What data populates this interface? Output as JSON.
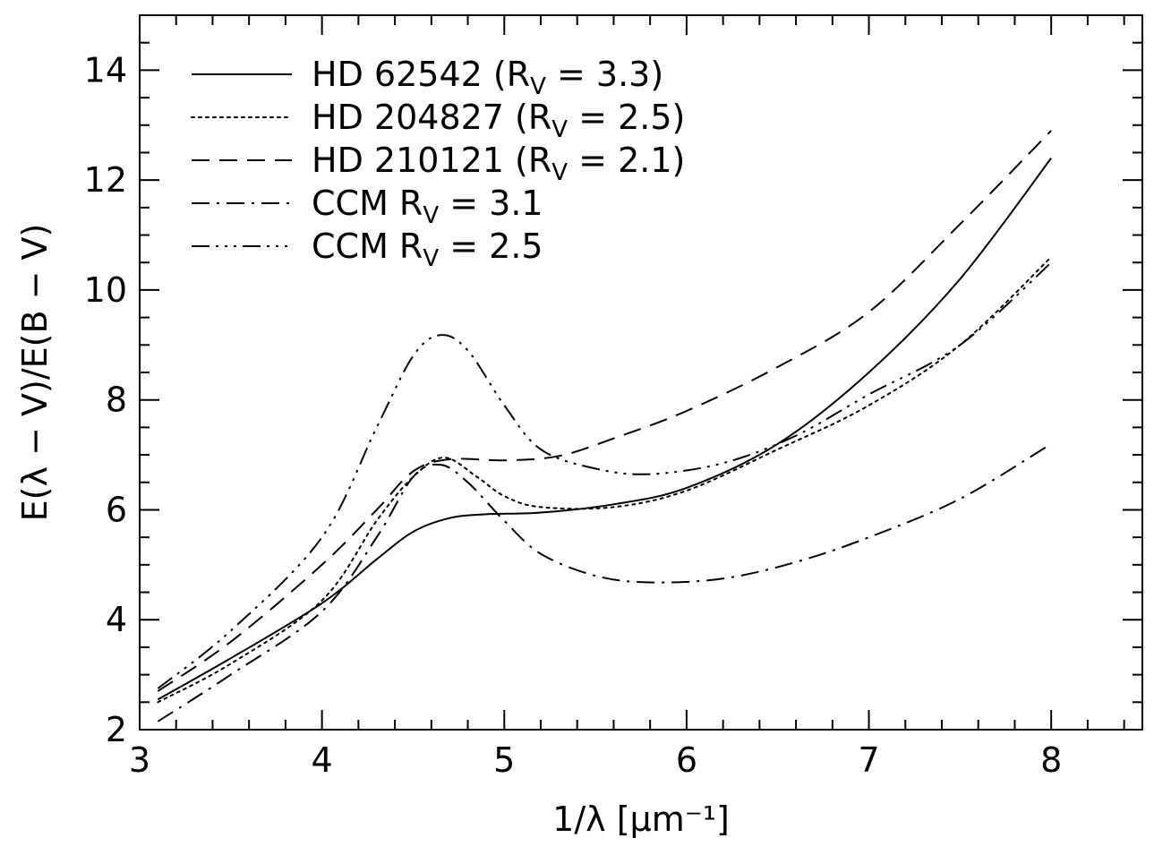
{
  "chart_data": {
    "type": "line",
    "xlabel": "1/λ [μm⁻¹]",
    "ylabel": "E(λ − V)/E(B − V)",
    "xlim": [
      3,
      8.5
    ],
    "ylim": [
      2,
      15
    ],
    "xticks": [
      3,
      4,
      5,
      6,
      7,
      8
    ],
    "yticks": [
      2,
      4,
      6,
      8,
      10,
      12,
      14
    ],
    "xtick_labels": [
      "3",
      "4",
      "5",
      "6",
      "7",
      "8"
    ],
    "ytick_labels": [
      "2",
      "4",
      "6",
      "8",
      "10",
      "12",
      "14"
    ],
    "x_minor_step": 0.2,
    "y_minor_step": 0.5,
    "grid": false,
    "legend_position": "top-left",
    "line_color": "#000000",
    "series": [
      {
        "name": "HD 62542 (R",
        "name_sub": "V",
        "name_suffix": " = 3.3)",
        "dash": "solid",
        "points": [
          [
            3.1,
            2.55
          ],
          [
            3.5,
            3.3
          ],
          [
            4.0,
            4.3
          ],
          [
            4.3,
            5.1
          ],
          [
            4.5,
            5.6
          ],
          [
            4.7,
            5.85
          ],
          [
            4.9,
            5.92
          ],
          [
            5.2,
            5.95
          ],
          [
            5.6,
            6.1
          ],
          [
            6.0,
            6.4
          ],
          [
            6.5,
            7.2
          ],
          [
            7.0,
            8.5
          ],
          [
            7.5,
            10.2
          ],
          [
            8.0,
            12.4
          ]
        ]
      },
      {
        "name": "HD 204827 (R",
        "name_sub": "V",
        "name_suffix": " = 2.5)",
        "dash": "dotted",
        "points": [
          [
            3.1,
            2.5
          ],
          [
            3.5,
            3.2
          ],
          [
            4.0,
            4.35
          ],
          [
            4.3,
            5.8
          ],
          [
            4.5,
            6.6
          ],
          [
            4.67,
            6.95
          ],
          [
            4.85,
            6.6
          ],
          [
            5.0,
            6.25
          ],
          [
            5.2,
            6.05
          ],
          [
            5.6,
            6.05
          ],
          [
            6.0,
            6.35
          ],
          [
            6.5,
            7.1
          ],
          [
            7.0,
            7.9
          ],
          [
            7.5,
            9.0
          ],
          [
            8.0,
            10.6
          ]
        ]
      },
      {
        "name": "HD 210121 (R",
        "name_sub": "V",
        "name_suffix": " = 2.1)",
        "dash": "dashed",
        "points": [
          [
            3.1,
            2.7
          ],
          [
            3.5,
            3.6
          ],
          [
            4.0,
            5.0
          ],
          [
            4.3,
            6.0
          ],
          [
            4.5,
            6.7
          ],
          [
            4.7,
            6.92
          ],
          [
            5.0,
            6.9
          ],
          [
            5.3,
            6.98
          ],
          [
            5.6,
            7.3
          ],
          [
            6.0,
            7.8
          ],
          [
            6.5,
            8.6
          ],
          [
            7.0,
            9.6
          ],
          [
            7.5,
            11.2
          ],
          [
            8.0,
            12.9
          ]
        ]
      },
      {
        "name": "CCM R",
        "name_sub": "V",
        "name_suffix": " = 3.1",
        "dash": "dashdot",
        "points": [
          [
            3.1,
            2.15
          ],
          [
            3.5,
            3.0
          ],
          [
            4.0,
            4.15
          ],
          [
            4.3,
            5.5
          ],
          [
            4.5,
            6.6
          ],
          [
            4.65,
            6.82
          ],
          [
            4.8,
            6.5
          ],
          [
            5.0,
            5.8
          ],
          [
            5.2,
            5.2
          ],
          [
            5.5,
            4.8
          ],
          [
            5.8,
            4.68
          ],
          [
            6.2,
            4.75
          ],
          [
            6.6,
            5.05
          ],
          [
            7.0,
            5.5
          ],
          [
            7.5,
            6.2
          ],
          [
            8.0,
            7.2
          ]
        ]
      },
      {
        "name": "CCM R",
        "name_sub": "V",
        "name_suffix": " = 2.5",
        "dash": "dashdotdotdot",
        "points": [
          [
            3.1,
            2.75
          ],
          [
            3.5,
            3.8
          ],
          [
            4.0,
            5.5
          ],
          [
            4.3,
            7.5
          ],
          [
            4.5,
            8.8
          ],
          [
            4.65,
            9.18
          ],
          [
            4.8,
            8.9
          ],
          [
            5.0,
            7.9
          ],
          [
            5.2,
            7.1
          ],
          [
            5.5,
            6.75
          ],
          [
            5.8,
            6.65
          ],
          [
            6.2,
            6.85
          ],
          [
            6.6,
            7.35
          ],
          [
            7.0,
            8.1
          ],
          [
            7.5,
            9.0
          ],
          [
            8.0,
            10.5
          ]
        ]
      }
    ]
  }
}
